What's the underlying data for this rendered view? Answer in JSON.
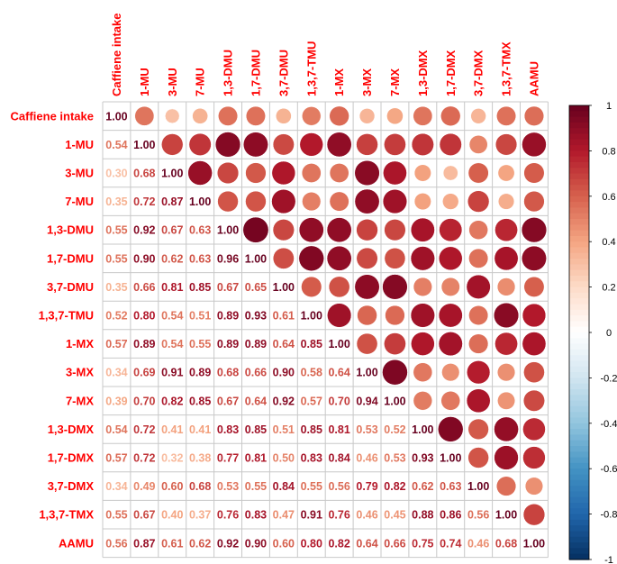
{
  "chart_data": {
    "type": "heatmap",
    "style": "correlation matrix: numbers in lower triangle and diagonal, circles in upper triangle",
    "labels": [
      "Caffiene intake",
      "1-MU",
      "3-MU",
      "7-MU",
      "1,3-DMU",
      "1,7-DMU",
      "3,7-DMU",
      "1,3,7-TMU",
      "1-MX",
      "3-MX",
      "7-MX",
      "1,3-DMX",
      "1,7-DMX",
      "3,7-DMX",
      "1,3,7-TMX",
      "AAMU"
    ],
    "matrix": [
      [
        1.0,
        0.54,
        0.3,
        0.35,
        0.55,
        0.55,
        0.35,
        0.52,
        0.57,
        0.34,
        0.39,
        0.54,
        0.57,
        0.34,
        0.55,
        0.56
      ],
      [
        0.54,
        1.0,
        0.68,
        0.72,
        0.92,
        0.9,
        0.66,
        0.8,
        0.89,
        0.69,
        0.7,
        0.72,
        0.72,
        0.49,
        0.67,
        0.87
      ],
      [
        0.3,
        0.68,
        1.0,
        0.87,
        0.67,
        0.62,
        0.81,
        0.54,
        0.54,
        0.91,
        0.82,
        0.41,
        0.32,
        0.6,
        0.4,
        0.61
      ],
      [
        0.35,
        0.72,
        0.87,
        1.0,
        0.63,
        0.63,
        0.85,
        0.51,
        0.55,
        0.89,
        0.85,
        0.41,
        0.38,
        0.68,
        0.37,
        0.62
      ],
      [
        0.55,
        0.92,
        0.67,
        0.63,
        1.0,
        0.96,
        0.67,
        0.89,
        0.89,
        0.68,
        0.67,
        0.83,
        0.77,
        0.53,
        0.76,
        0.92
      ],
      [
        0.55,
        0.9,
        0.62,
        0.63,
        0.96,
        1.0,
        0.65,
        0.93,
        0.89,
        0.66,
        0.64,
        0.85,
        0.81,
        0.55,
        0.83,
        0.9
      ],
      [
        0.35,
        0.66,
        0.81,
        0.85,
        0.67,
        0.65,
        1.0,
        0.61,
        0.64,
        0.9,
        0.92,
        0.51,
        0.5,
        0.84,
        0.47,
        0.6
      ],
      [
        0.52,
        0.8,
        0.54,
        0.51,
        0.89,
        0.93,
        0.61,
        1.0,
        0.85,
        0.58,
        0.57,
        0.85,
        0.83,
        0.55,
        0.91,
        0.8
      ],
      [
        0.57,
        0.89,
        0.54,
        0.55,
        0.89,
        0.89,
        0.64,
        0.85,
        1.0,
        0.64,
        0.7,
        0.81,
        0.84,
        0.56,
        0.76,
        0.82
      ],
      [
        0.34,
        0.69,
        0.91,
        0.89,
        0.68,
        0.66,
        0.9,
        0.58,
        0.64,
        1.0,
        0.94,
        0.53,
        0.46,
        0.79,
        0.46,
        0.64
      ],
      [
        0.39,
        0.7,
        0.82,
        0.85,
        0.67,
        0.64,
        0.92,
        0.57,
        0.7,
        0.94,
        1.0,
        0.52,
        0.53,
        0.82,
        0.45,
        0.66
      ],
      [
        0.54,
        0.72,
        0.41,
        0.41,
        0.83,
        0.85,
        0.51,
        0.85,
        0.81,
        0.53,
        0.52,
        1.0,
        0.93,
        0.62,
        0.88,
        0.75
      ],
      [
        0.57,
        0.72,
        0.32,
        0.38,
        0.77,
        0.81,
        0.5,
        0.83,
        0.84,
        0.46,
        0.53,
        0.93,
        1.0,
        0.63,
        0.86,
        0.74
      ],
      [
        0.34,
        0.49,
        0.6,
        0.68,
        0.53,
        0.55,
        0.84,
        0.55,
        0.56,
        0.79,
        0.82,
        0.62,
        0.63,
        1.0,
        0.56,
        0.46
      ],
      [
        0.55,
        0.67,
        0.4,
        0.37,
        0.76,
        0.83,
        0.47,
        0.91,
        0.76,
        0.46,
        0.45,
        0.88,
        0.86,
        0.56,
        1.0,
        0.68
      ],
      [
        0.56,
        0.87,
        0.61,
        0.62,
        0.92,
        0.9,
        0.6,
        0.8,
        0.82,
        0.64,
        0.66,
        0.75,
        0.74,
        0.46,
        0.68,
        1.0
      ]
    ],
    "colorbar": {
      "range": [
        -1,
        1
      ],
      "ticks": [
        "1",
        "0.8",
        "0.6",
        "0.4",
        "0.2",
        "0",
        "-0.2",
        "-0.4",
        "-0.6",
        "-0.8",
        "-1"
      ],
      "colors": [
        "#67001F",
        "#B2182B",
        "#D6604D",
        "#F4A582",
        "#FDDBC7",
        "#FFFFFF",
        "#D1E5F0",
        "#92C5DE",
        "#4393C3",
        "#2166AC",
        "#053061"
      ]
    },
    "label_color": "#FF0000"
  }
}
